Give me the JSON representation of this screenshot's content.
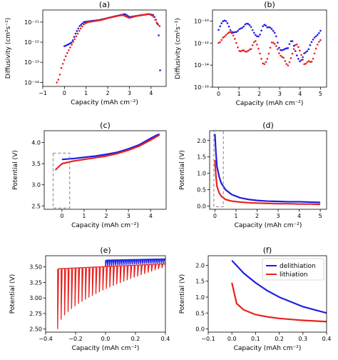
{
  "colors": {
    "blue": "#1f1fe0",
    "red": "#e8221f",
    "box": "#808080",
    "axis": "#000000"
  },
  "chart_data": [
    {
      "panel": "(a)",
      "type": "scatter",
      "xlabel": "Capacity (mAh cm⁻²)",
      "ylabel": "Diffusivity (cm²s⁻¹)",
      "xlim": [
        -1,
        4.7
      ],
      "ylim": [
        -14.2,
        -10.4
      ],
      "yscale": "log",
      "xticks": [
        -1,
        0,
        1,
        2,
        3,
        4
      ],
      "xticklabels": [
        "−1",
        "0",
        "1",
        "2",
        "3",
        "4"
      ],
      "yticks": [
        -11,
        -12,
        -13,
        -14
      ],
      "yticklabels": [
        "10⁻¹¹",
        "10⁻¹²",
        "10⁻¹³",
        "10⁻¹⁴"
      ],
      "series": [
        {
          "color": "blue",
          "x": [
            0.0,
            0.1,
            0.2,
            0.35,
            0.5,
            0.7,
            0.9,
            1.2,
            1.6,
            2.0,
            2.4,
            2.8,
            3.0,
            3.3,
            3.6,
            3.9,
            4.1,
            4.2,
            4.3,
            4.35,
            4.4,
            4.42
          ],
          "y": [
            -12.2,
            -12.15,
            -12.1,
            -12.0,
            -11.6,
            -11.2,
            -11.0,
            -10.95,
            -10.9,
            -10.8,
            -10.7,
            -10.6,
            -10.75,
            -10.7,
            -10.65,
            -10.6,
            -10.65,
            -10.8,
            -11.1,
            -11.6,
            -12.1,
            -13.4
          ]
        },
        {
          "color": "red",
          "x": [
            -0.35,
            -0.25,
            -0.15,
            -0.05,
            0.1,
            0.3,
            0.5,
            0.7,
            0.9,
            1.1,
            1.4,
            1.7,
            2.0,
            2.4,
            2.7,
            3.0,
            3.3,
            3.6,
            3.9,
            4.1,
            4.2,
            4.3,
            4.4
          ],
          "y": [
            -14.0,
            -13.8,
            -13.3,
            -13.0,
            -12.6,
            -12.2,
            -11.8,
            -11.4,
            -11.1,
            -11.0,
            -10.95,
            -10.9,
            -10.8,
            -10.7,
            -10.65,
            -10.8,
            -10.7,
            -10.65,
            -10.6,
            -10.7,
            -10.9,
            -11.1,
            -11.2
          ]
        }
      ]
    },
    {
      "panel": "(b)",
      "type": "scatter",
      "xlabel": "Capacity (mAh cm⁻²)",
      "ylabel": "Diffusivity (cm²s⁻¹)",
      "xlim": [
        -0.3,
        5.3
      ],
      "ylim": [
        -16,
        -9
      ],
      "yscale": "log",
      "xticks": [
        0,
        1,
        2,
        3,
        4,
        5
      ],
      "xticklabels": [
        "0",
        "1",
        "2",
        "3",
        "4",
        "5"
      ],
      "yticks": [
        -10,
        -12,
        -14,
        -16
      ],
      "yticklabels": [
        "10⁻¹⁰",
        "10⁻¹²",
        "10⁻¹⁴",
        "10⁻¹⁶"
      ],
      "series": [
        {
          "color": "blue",
          "x": [
            0.0,
            0.2,
            0.4,
            0.6,
            0.8,
            1.0,
            1.2,
            1.4,
            1.6,
            1.8,
            2.0,
            2.2,
            2.4,
            2.6,
            2.8,
            3.0,
            3.2,
            3.4,
            3.6,
            3.8,
            4.0,
            4.2,
            4.4,
            4.6,
            4.8,
            5.0
          ],
          "y": [
            -10.8,
            -10.6,
            -10.5,
            -10.7,
            -10.4,
            -10.5,
            -11.0,
            -10.8,
            -10.6,
            -10.7,
            -10.9,
            -10.5,
            -11.2,
            -11.0,
            -10.8,
            -12.0,
            -12.5,
            -13.0,
            -12.2,
            -12.8,
            -13.1,
            -12.6,
            -13.0,
            -12.4,
            -11.5,
            -10.4
          ]
        },
        {
          "color": "red",
          "x": [
            0.0,
            0.2,
            0.4,
            0.6,
            0.8,
            1.0,
            1.2,
            1.4,
            1.6,
            1.8,
            2.0,
            2.2,
            2.4,
            2.6,
            2.8,
            3.0,
            3.2,
            3.4,
            3.6,
            3.8,
            4.0,
            4.2,
            4.4,
            4.6,
            4.8,
            5.0
          ],
          "y": [
            -11.5,
            -11.0,
            -11.3,
            -11.6,
            -12.0,
            -12.4,
            -12.0,
            -12.6,
            -13.0,
            -12.3,
            -12.7,
            -13.4,
            -13.0,
            -12.2,
            -12.8,
            -13.3,
            -12.9,
            -13.5,
            -13.1,
            -12.6,
            -13.2,
            -13.7,
            -13.0,
            -13.4,
            -12.8,
            -12.3
          ]
        }
      ]
    },
    {
      "panel": "(c)",
      "type": "line",
      "xlabel": "Capacity (mAh cm⁻²)",
      "ylabel": "Potential (V)",
      "xlim": [
        -0.8,
        4.7
      ],
      "ylim": [
        2.42,
        4.28
      ],
      "xticks": [
        0,
        1,
        2,
        3,
        4
      ],
      "xticklabels": [
        "0",
        "1",
        "2",
        "3",
        "4"
      ],
      "yticks": [
        2.5,
        3.0,
        3.5,
        4.0
      ],
      "yticklabels": [
        "2.5",
        "3.0",
        "3.5",
        "4.0"
      ],
      "box": [
        -0.4,
        0.35,
        2.45,
        3.75
      ],
      "series": [
        {
          "color": "blue",
          "x": [
            0.0,
            0.5,
            1.0,
            1.5,
            2.0,
            2.5,
            3.0,
            3.5,
            4.0,
            4.3,
            4.4
          ],
          "y": [
            3.6,
            3.62,
            3.65,
            3.68,
            3.72,
            3.77,
            3.85,
            3.95,
            4.1,
            4.18,
            4.2
          ]
        },
        {
          "color": "red",
          "x": [
            -0.3,
            0.0,
            0.5,
            1.0,
            1.5,
            2.0,
            2.5,
            3.0,
            3.5,
            4.0,
            4.3,
            4.4
          ],
          "y": [
            3.35,
            3.5,
            3.56,
            3.6,
            3.64,
            3.68,
            3.74,
            3.82,
            3.92,
            4.06,
            4.15,
            4.18
          ]
        }
      ]
    },
    {
      "panel": "(d)",
      "type": "line",
      "xlabel": "Capacity (mAh cm⁻²)",
      "ylabel": "Potential (V)",
      "xlim": [
        -0.25,
        5.3
      ],
      "ylim": [
        -0.1,
        2.3
      ],
      "xticks": [
        0,
        1,
        2,
        3,
        4,
        5
      ],
      "xticklabels": [
        "0",
        "1",
        "2",
        "3",
        "4",
        "5"
      ],
      "yticks": [
        0.0,
        0.5,
        1.0,
        1.5,
        2.0
      ],
      "yticklabels": [
        "0.0",
        "0.5",
        "1.0",
        "1.5",
        "2.0"
      ],
      "box": [
        -0.05,
        0.4,
        -0.02,
        2.5
      ],
      "series": [
        {
          "color": "blue",
          "x": [
            0.0,
            0.05,
            0.1,
            0.2,
            0.3,
            0.5,
            0.8,
            1.2,
            1.6,
            2.0,
            2.5,
            3.0,
            3.5,
            4.0,
            4.5,
            5.0
          ],
          "y": [
            2.2,
            1.6,
            1.2,
            0.9,
            0.7,
            0.5,
            0.35,
            0.25,
            0.2,
            0.17,
            0.15,
            0.14,
            0.13,
            0.13,
            0.12,
            0.11
          ]
        },
        {
          "color": "red",
          "x": [
            0.0,
            0.05,
            0.1,
            0.2,
            0.3,
            0.5,
            0.8,
            1.2,
            1.6,
            2.0,
            2.5,
            3.0,
            3.5,
            4.0,
            4.5,
            5.0
          ],
          "y": [
            1.4,
            0.9,
            0.6,
            0.4,
            0.3,
            0.2,
            0.15,
            0.12,
            0.1,
            0.09,
            0.08,
            0.07,
            0.07,
            0.06,
            0.06,
            0.05
          ]
        }
      ]
    },
    {
      "panel": "(e)",
      "type": "line",
      "xlabel": "Capacity (mAh cm⁻²)",
      "ylabel": "Potential (V)",
      "xlim": [
        -0.4,
        0.4
      ],
      "ylim": [
        2.45,
        3.68
      ],
      "xticks": [
        -0.4,
        -0.2,
        0.0,
        0.2,
        0.4
      ],
      "xticklabels": [
        "−0.4",
        "−0.2",
        "0.0",
        "0.2",
        "0.4"
      ],
      "yticks": [
        2.5,
        2.75,
        3.0,
        3.25,
        3.5
      ],
      "yticklabels": [
        "2.50",
        "2.75",
        "3.00",
        "3.25",
        "3.50"
      ],
      "series": [
        {
          "color": "blue",
          "x": [
            0.0,
            0.4
          ],
          "y_high": [
            3.61,
            3.63
          ],
          "y_low": [
            3.5,
            3.56
          ]
        },
        {
          "color": "red",
          "x": [
            -0.32,
            0.4
          ],
          "y_high": [
            3.47,
            3.55
          ],
          "y_low": [
            2.5,
            3.5
          ]
        }
      ]
    },
    {
      "panel": "(f)",
      "type": "line",
      "xlabel": "Capacity (mAh cm⁻²)",
      "ylabel": "Potential (V)",
      "xlim": [
        -0.1,
        0.4
      ],
      "ylim": [
        -0.1,
        2.3
      ],
      "xticks": [
        -0.1,
        0.0,
        0.1,
        0.2,
        0.3,
        0.4
      ],
      "xticklabels": [
        "−0.1",
        "0.0",
        "0.1",
        "0.2",
        "0.3",
        "0.4"
      ],
      "yticks": [
        0.0,
        0.5,
        1.0,
        1.5,
        2.0
      ],
      "yticklabels": [
        "0.0",
        "0.5",
        "1.0",
        "1.5",
        "2.0"
      ],
      "legend": {
        "placement": "top-right",
        "entries": [
          "delithiation",
          "lithiation"
        ]
      },
      "series": [
        {
          "name": "delithiation",
          "color": "blue",
          "x": [
            0.0,
            0.05,
            0.1,
            0.15,
            0.2,
            0.25,
            0.3,
            0.35,
            0.4
          ],
          "y": [
            2.15,
            1.75,
            1.45,
            1.2,
            1.0,
            0.85,
            0.7,
            0.6,
            0.5
          ]
        },
        {
          "name": "lithiation",
          "color": "red",
          "x": [
            0.0,
            0.02,
            0.05,
            0.1,
            0.15,
            0.2,
            0.25,
            0.3,
            0.35,
            0.4
          ],
          "y": [
            1.45,
            0.8,
            0.6,
            0.45,
            0.38,
            0.33,
            0.3,
            0.27,
            0.25,
            0.23
          ]
        }
      ]
    }
  ]
}
